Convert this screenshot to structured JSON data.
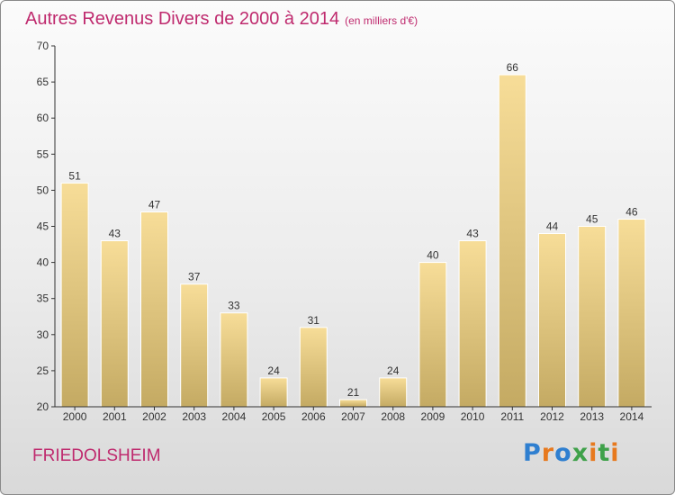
{
  "title": "Autres Revenus Divers de 2000 à 2014",
  "subtitle": "(en milliers d'€)",
  "location": "FRIEDOLSHEIM",
  "logo": {
    "letters": [
      "P",
      "r",
      "o",
      "x",
      "i",
      "t",
      "i"
    ],
    "colors": [
      "#2f7fd0",
      "#e7791e",
      "#2f7fd0",
      "#3fa14a",
      "#e7791e",
      "#3fa14a",
      "#e7791e"
    ]
  },
  "colors": {
    "accent": "#bf2a6e",
    "bar_light": "#f7dd98",
    "bar_dark": "#c4aa63",
    "axis": "#333333"
  },
  "chart_data": {
    "type": "bar",
    "categories": [
      "2000",
      "2001",
      "2002",
      "2003",
      "2004",
      "2005",
      "2006",
      "2007",
      "2008",
      "2009",
      "2010",
      "2011",
      "2012",
      "2013",
      "2014"
    ],
    "values": [
      51,
      43,
      47,
      37,
      33,
      24,
      31,
      21,
      24,
      40,
      43,
      66,
      44,
      45,
      46
    ],
    "title": "Autres Revenus Divers de 2000 à 2014",
    "subtitle": "(en milliers d'€)",
    "xlabel": "",
    "ylabel": "",
    "ylim": [
      20,
      70
    ],
    "yticks": [
      20,
      25,
      30,
      35,
      40,
      45,
      50,
      55,
      60,
      65,
      70
    ],
    "grid": false,
    "data_labels": true
  }
}
